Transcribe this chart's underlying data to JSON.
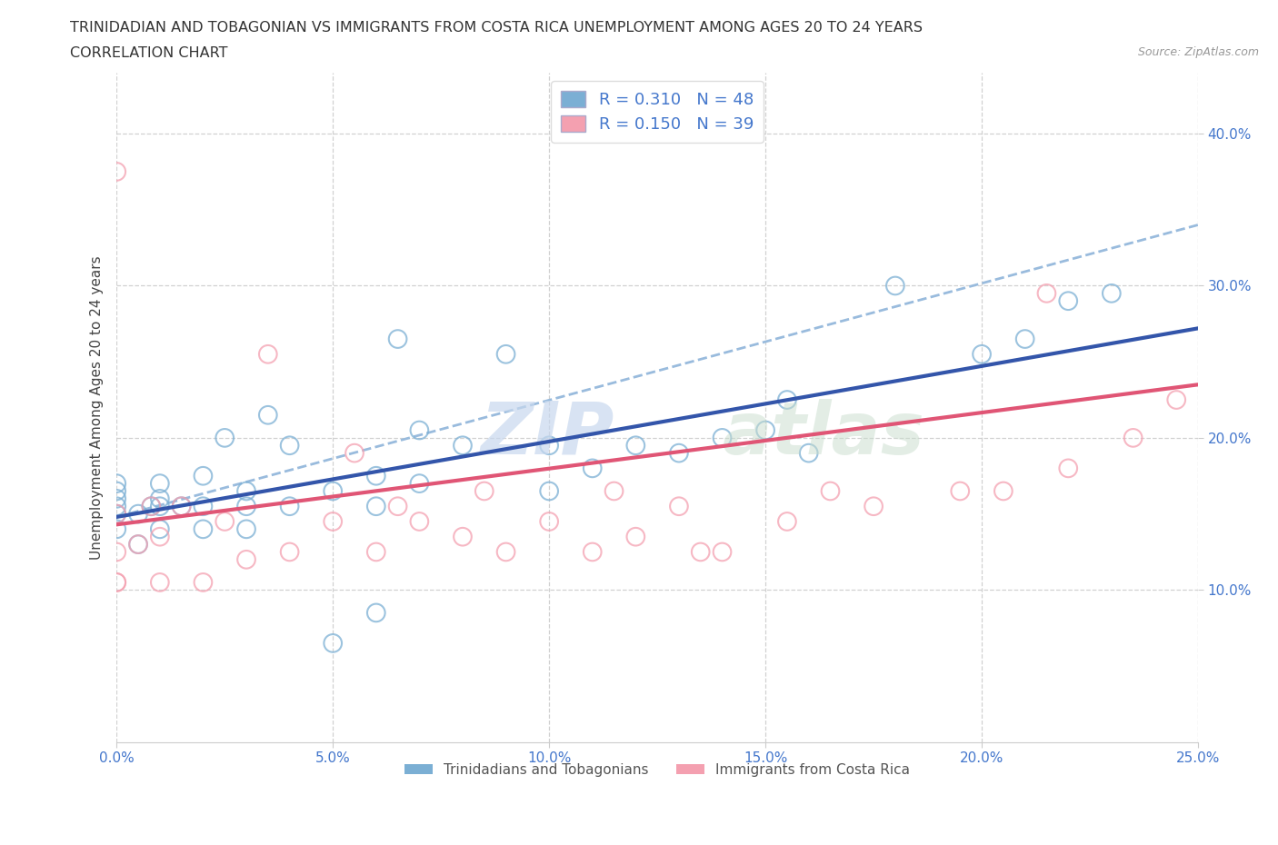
{
  "title_line1": "TRINIDADIAN AND TOBAGONIAN VS IMMIGRANTS FROM COSTA RICA UNEMPLOYMENT AMONG AGES 20 TO 24 YEARS",
  "title_line2": "CORRELATION CHART",
  "source_text": "Source: ZipAtlas.com",
  "ylabel": "Unemployment Among Ages 20 to 24 years",
  "xlim": [
    0.0,
    0.25
  ],
  "ylim": [
    0.0,
    0.44
  ],
  "xtick_labels": [
    "0.0%",
    "5.0%",
    "10.0%",
    "15.0%",
    "20.0%",
    "25.0%"
  ],
  "xtick_values": [
    0.0,
    0.05,
    0.1,
    0.15,
    0.2,
    0.25
  ],
  "ytick_labels": [
    "10.0%",
    "20.0%",
    "30.0%",
    "40.0%"
  ],
  "ytick_values": [
    0.1,
    0.2,
    0.3,
    0.4
  ],
  "grid_color": "#cccccc",
  "background_color": "#ffffff",
  "blue_color": "#7BAFD4",
  "pink_color": "#F4A0B0",
  "blue_line_color": "#3355AA",
  "pink_line_color": "#E05575",
  "dashed_line_color": "#99BBDD",
  "legend_label_blue": "R = 0.310   N = 48",
  "legend_label_pink": "R = 0.150   N = 39",
  "scatter_legend_blue": "Trinidadians and Tobagonians",
  "scatter_legend_pink": "Immigrants from Costa Rica",
  "tick_color": "#4477CC",
  "blue_scatter_x": [
    0.0,
    0.0,
    0.0,
    0.0,
    0.0,
    0.0,
    0.005,
    0.005,
    0.008,
    0.01,
    0.01,
    0.01,
    0.01,
    0.015,
    0.02,
    0.02,
    0.02,
    0.025,
    0.03,
    0.03,
    0.03,
    0.035,
    0.04,
    0.04,
    0.05,
    0.05,
    0.06,
    0.06,
    0.06,
    0.065,
    0.07,
    0.07,
    0.08,
    0.09,
    0.1,
    0.1,
    0.11,
    0.12,
    0.13,
    0.14,
    0.15,
    0.155,
    0.16,
    0.18,
    0.2,
    0.21,
    0.22,
    0.23
  ],
  "blue_scatter_y": [
    0.14,
    0.15,
    0.155,
    0.16,
    0.165,
    0.17,
    0.13,
    0.15,
    0.155,
    0.14,
    0.155,
    0.16,
    0.17,
    0.155,
    0.14,
    0.155,
    0.175,
    0.2,
    0.14,
    0.155,
    0.165,
    0.215,
    0.155,
    0.195,
    0.065,
    0.165,
    0.085,
    0.155,
    0.175,
    0.265,
    0.17,
    0.205,
    0.195,
    0.255,
    0.165,
    0.195,
    0.18,
    0.195,
    0.19,
    0.2,
    0.205,
    0.225,
    0.19,
    0.3,
    0.255,
    0.265,
    0.29,
    0.295
  ],
  "pink_scatter_x": [
    0.0,
    0.0,
    0.0,
    0.0,
    0.0,
    0.005,
    0.008,
    0.01,
    0.01,
    0.015,
    0.02,
    0.025,
    0.03,
    0.035,
    0.04,
    0.05,
    0.055,
    0.06,
    0.065,
    0.07,
    0.08,
    0.085,
    0.09,
    0.1,
    0.11,
    0.115,
    0.12,
    0.13,
    0.135,
    0.14,
    0.155,
    0.165,
    0.175,
    0.195,
    0.205,
    0.215,
    0.22,
    0.235,
    0.245
  ],
  "pink_scatter_y": [
    0.105,
    0.125,
    0.15,
    0.375,
    0.105,
    0.13,
    0.155,
    0.105,
    0.135,
    0.155,
    0.105,
    0.145,
    0.12,
    0.255,
    0.125,
    0.145,
    0.19,
    0.125,
    0.155,
    0.145,
    0.135,
    0.165,
    0.125,
    0.145,
    0.125,
    0.165,
    0.135,
    0.155,
    0.125,
    0.125,
    0.145,
    0.165,
    0.155,
    0.165,
    0.165,
    0.295,
    0.18,
    0.2,
    0.225
  ],
  "blue_trend_x": [
    0.0,
    0.25
  ],
  "blue_trend_y": [
    0.148,
    0.272
  ],
  "pink_trend_x": [
    0.0,
    0.25
  ],
  "pink_trend_y": [
    0.143,
    0.235
  ],
  "dashed_trend_x": [
    0.0,
    0.25
  ],
  "dashed_trend_y": [
    0.148,
    0.34
  ],
  "title_fontsize": 11.5,
  "subtitle_fontsize": 11.5,
  "axis_label_fontsize": 11,
  "tick_fontsize": 11,
  "legend_fontsize": 13
}
